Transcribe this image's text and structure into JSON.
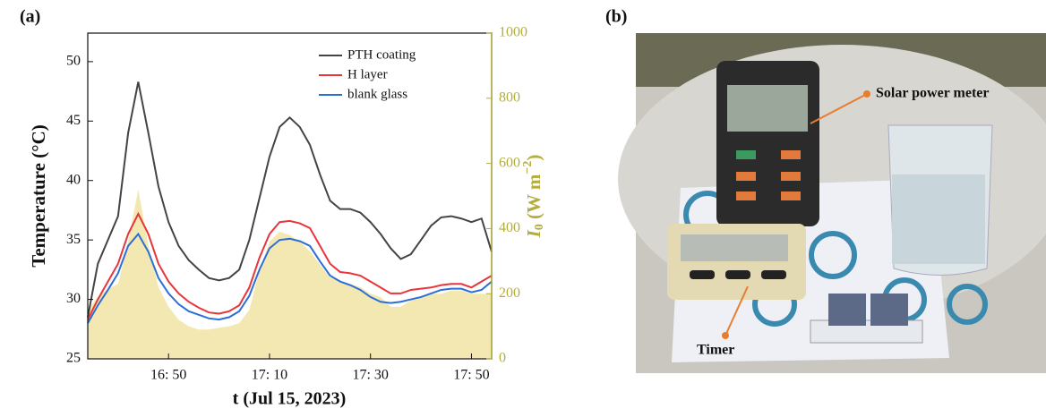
{
  "chart_data": {
    "type": "line",
    "panel_label": "(a)",
    "xlabel": "t (Jul 15, 2023)",
    "ylabel": "Temperature (°C)",
    "y2label": {
      "symbol": "I",
      "subscript": "0",
      "text": " (W m",
      "superscript": "−2",
      "end": ")"
    },
    "x": [
      994,
      996,
      998,
      1000,
      1002,
      1004,
      1006,
      1008,
      1010,
      1012,
      1014,
      1016,
      1018,
      1020,
      1022,
      1024,
      1026,
      1028,
      1030,
      1032,
      1034,
      1036,
      1038,
      1040,
      1042,
      1044,
      1046,
      1048,
      1050,
      1052,
      1054,
      1056,
      1058,
      1060,
      1062,
      1064,
      1066,
      1068,
      1070,
      1072,
      1074
    ],
    "xlim": [
      994,
      1074
    ],
    "xticks": [
      {
        "value": 1010,
        "label": "16: 50"
      },
      {
        "value": 1030,
        "label": "17: 10"
      },
      {
        "value": 1050,
        "label": "17: 30"
      },
      {
        "value": 1070,
        "label": "17: 50"
      }
    ],
    "ylim": [
      25,
      52.4
    ],
    "yticks": [
      25,
      30,
      35,
      40,
      45,
      50
    ],
    "y2lim": [
      0,
      1000
    ],
    "y2ticks": [
      0,
      200,
      400,
      600,
      800,
      1000
    ],
    "y2color": "#b3ad3c",
    "legend": "upper right",
    "area": {
      "axis": "y2",
      "color": "#f4e8b2",
      "values": [
        150,
        190,
        215,
        230,
        360,
        520,
        350,
        220,
        160,
        120,
        100,
        90,
        90,
        95,
        100,
        110,
        150,
        270,
        360,
        390,
        380,
        360,
        330,
        290,
        250,
        240,
        230,
        220,
        200,
        190,
        160,
        160,
        180,
        190,
        200,
        200,
        210,
        210,
        200,
        200,
        200
      ]
    },
    "series": [
      {
        "name": "PTH coating",
        "color": "#444444",
        "values": [
          28.5,
          33,
          35,
          37,
          44,
          48.3,
          44,
          39.5,
          36.5,
          34.5,
          33.3,
          32.5,
          31.8,
          31.6,
          31.8,
          32.5,
          35,
          38.5,
          42,
          44.5,
          45.3,
          44.5,
          43,
          40.5,
          38.3,
          37.6,
          37.6,
          37.3,
          36.5,
          35.5,
          34.3,
          33.4,
          33.8,
          35,
          36.2,
          36.9,
          37,
          36.8,
          36.5,
          36.8,
          34
        ]
      },
      {
        "name": "H layer",
        "color": "#e8353a",
        "values": [
          28.3,
          30,
          31.5,
          33,
          35.5,
          37.2,
          35.5,
          33,
          31.5,
          30.5,
          29.8,
          29.3,
          28.9,
          28.8,
          29,
          29.5,
          31,
          33.5,
          35.5,
          36.5,
          36.6,
          36.4,
          36,
          34.5,
          33,
          32.3,
          32.2,
          32,
          31.5,
          31,
          30.5,
          30.5,
          30.8,
          30.9,
          31,
          31.2,
          31.3,
          31.3,
          31,
          31.5,
          32
        ]
      },
      {
        "name": "blank glass",
        "color": "#2b6fd6",
        "values": [
          28,
          29.5,
          30.8,
          32.2,
          34.5,
          35.5,
          34,
          31.8,
          30.5,
          29.6,
          29,
          28.7,
          28.4,
          28.3,
          28.5,
          29,
          30.3,
          32.5,
          34.3,
          35,
          35.1,
          34.9,
          34.5,
          33.2,
          32,
          31.5,
          31.2,
          30.8,
          30.2,
          29.8,
          29.7,
          29.8,
          30,
          30.2,
          30.5,
          30.8,
          30.9,
          30.9,
          30.6,
          30.8,
          31.5
        ]
      }
    ]
  },
  "panel_b": {
    "label": "(b)",
    "annotations": [
      "Solar power meter",
      "Timer"
    ]
  }
}
